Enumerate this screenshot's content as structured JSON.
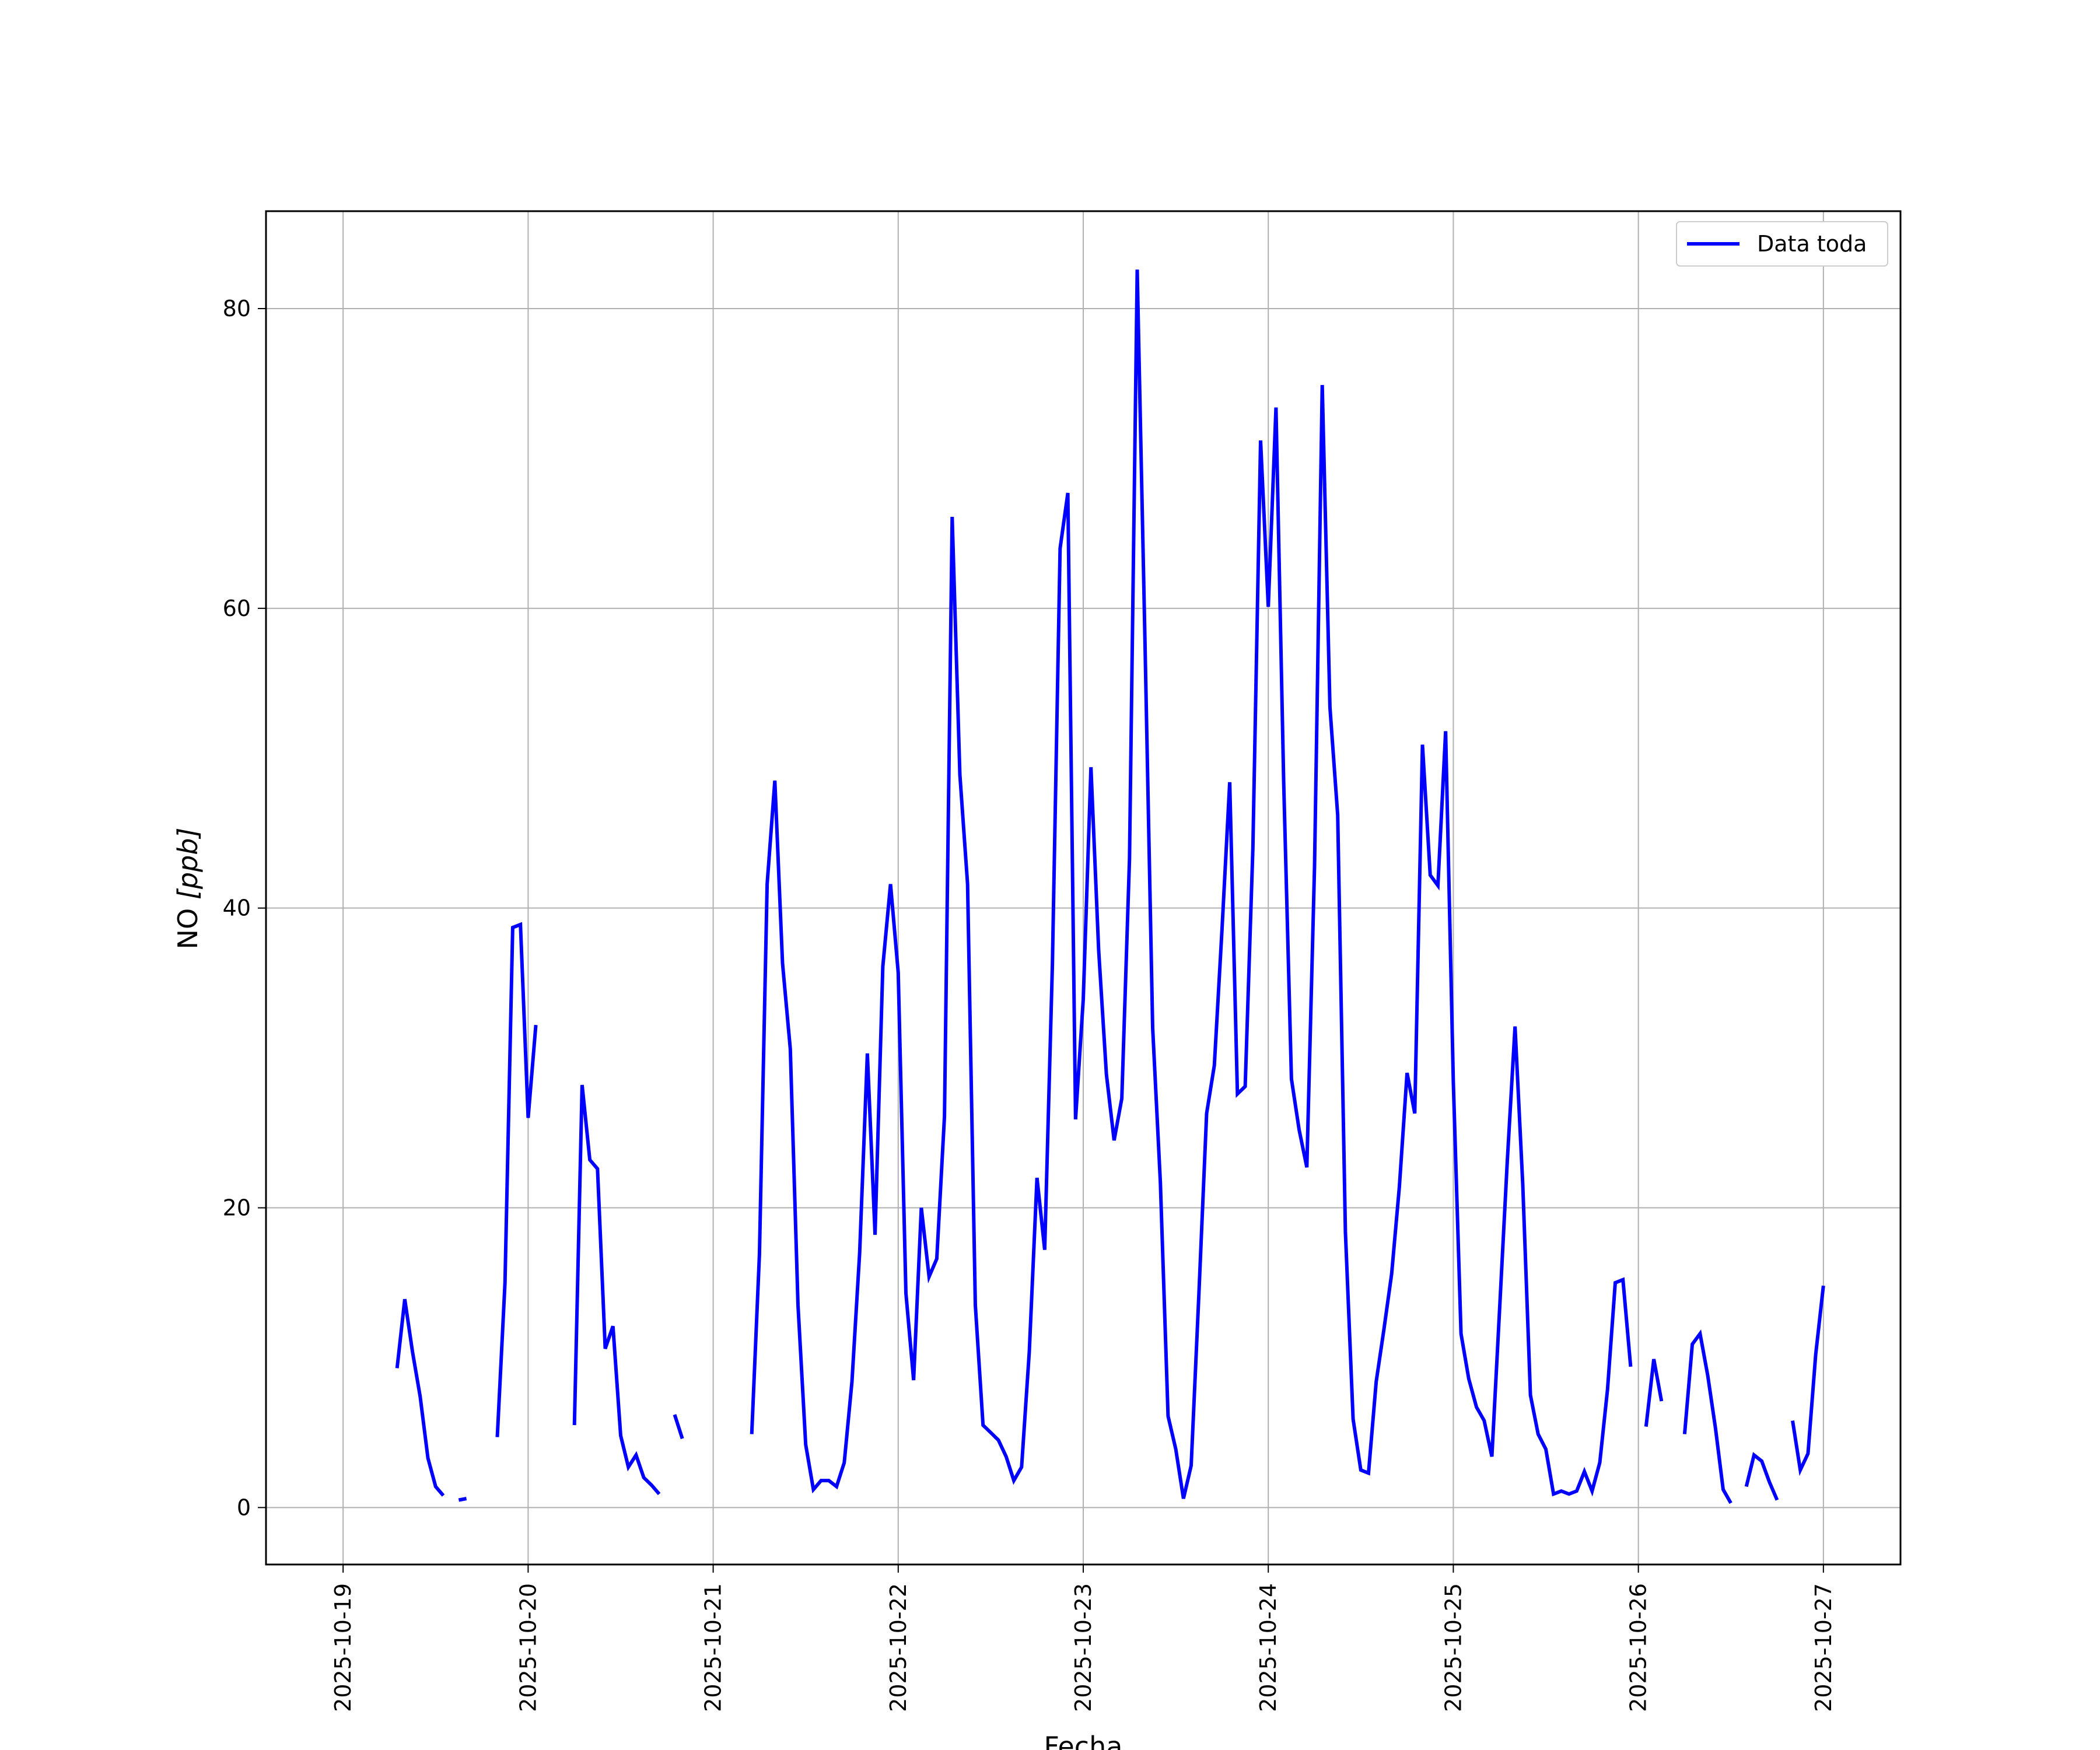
{
  "chart_data": {
    "type": "line",
    "title": "",
    "xlabel": "Fecha",
    "ylabel_main": "NO ",
    "ylabel_unit": "[ppb]",
    "ylim": [
      -3.8,
      86.5
    ],
    "xlim": [
      "2025-10-18 14:00",
      "2025-10-27 10:00"
    ],
    "yticks": [
      0,
      20,
      40,
      60,
      80
    ],
    "xticks": [
      "2025-10-19",
      "2025-10-20",
      "2025-10-21",
      "2025-10-22",
      "2025-10-23",
      "2025-10-24",
      "2025-10-25",
      "2025-10-26",
      "2025-10-27"
    ],
    "grid": true,
    "legend": {
      "position": "upper right"
    },
    "series": [
      {
        "name": "Data toda",
        "color": "#0000ff",
        "segments": [
          [
            [
              "2025-10-19 07:00",
              9.3
            ],
            [
              "2025-10-19 08:00",
              13.9
            ],
            [
              "2025-10-19 09:00",
              10.4
            ],
            [
              "2025-10-19 10:00",
              7.4
            ],
            [
              "2025-10-19 11:00",
              3.3
            ],
            [
              "2025-10-19 12:00",
              1.4
            ],
            [
              "2025-10-19 13:00",
              0.8
            ]
          ],
          [
            [
              "2025-10-19 15:00",
              0.5
            ],
            [
              "2025-10-19 16:00",
              0.6
            ]
          ],
          [
            [
              "2025-10-19 20:00",
              4.7
            ],
            [
              "2025-10-19 21:00",
              15.0
            ],
            [
              "2025-10-19 22:00",
              38.7
            ],
            [
              "2025-10-19 23:00",
              38.9
            ],
            [
              "2025-10-20 00:00",
              26.0
            ],
            [
              "2025-10-20 01:00",
              32.2
            ]
          ],
          [
            [
              "2025-10-20 06:00",
              5.5
            ],
            [
              "2025-10-20 07:00",
              28.2
            ],
            [
              "2025-10-20 08:00",
              23.2
            ],
            [
              "2025-10-20 09:00",
              22.6
            ],
            [
              "2025-10-20 10:00",
              10.6
            ],
            [
              "2025-10-20 11:00",
              12.1
            ],
            [
              "2025-10-20 12:00",
              4.8
            ],
            [
              "2025-10-20 13:00",
              2.7
            ],
            [
              "2025-10-20 14:00",
              3.5
            ],
            [
              "2025-10-20 15:00",
              2.0
            ],
            [
              "2025-10-20 16:00",
              1.5
            ],
            [
              "2025-10-20 17:00",
              0.9
            ]
          ],
          [
            [
              "2025-10-20 19:00",
              6.2
            ],
            [
              "2025-10-20 20:00",
              4.6
            ]
          ],
          [
            [
              "2025-10-21 05:00",
              4.9
            ],
            [
              "2025-10-21 06:00",
              16.9
            ],
            [
              "2025-10-21 07:00",
              41.6
            ],
            [
              "2025-10-21 08:00",
              48.5
            ],
            [
              "2025-10-21 09:00",
              36.3
            ],
            [
              "2025-10-21 10:00",
              30.6
            ],
            [
              "2025-10-21 11:00",
              13.5
            ],
            [
              "2025-10-21 12:00",
              4.2
            ],
            [
              "2025-10-21 13:00",
              1.2
            ],
            [
              "2025-10-21 14:00",
              1.8
            ],
            [
              "2025-10-21 15:00",
              1.8
            ],
            [
              "2025-10-21 16:00",
              1.4
            ],
            [
              "2025-10-21 17:00",
              3.0
            ],
            [
              "2025-10-21 18:00",
              8.4
            ],
            [
              "2025-10-21 19:00",
              17.0
            ],
            [
              "2025-10-21 20:00",
              30.3
            ],
            [
              "2025-10-21 21:00",
              18.2
            ],
            [
              "2025-10-21 22:00",
              36.1
            ],
            [
              "2025-10-21 23:00",
              41.6
            ],
            [
              "2025-10-22 00:00",
              35.7
            ],
            [
              "2025-10-22 01:00",
              14.3
            ],
            [
              "2025-10-22 02:00",
              8.5
            ],
            [
              "2025-10-22 03:00",
              20.0
            ],
            [
              "2025-10-22 04:00",
              15.4
            ],
            [
              "2025-10-22 05:00",
              16.6
            ],
            [
              "2025-10-22 06:00",
              26.1
            ],
            [
              "2025-10-22 07:00",
              66.1
            ],
            [
              "2025-10-22 08:00",
              48.9
            ],
            [
              "2025-10-22 09:00",
              41.6
            ],
            [
              "2025-10-22 10:00",
              13.5
            ],
            [
              "2025-10-22 11:00",
              5.5
            ],
            [
              "2025-10-22 12:00",
              5.0
            ],
            [
              "2025-10-22 13:00",
              4.5
            ],
            [
              "2025-10-22 14:00",
              3.4
            ],
            [
              "2025-10-22 15:00",
              1.8
            ],
            [
              "2025-10-22 16:00",
              2.7
            ],
            [
              "2025-10-22 17:00",
              10.4
            ],
            [
              "2025-10-22 18:00",
              22.0
            ],
            [
              "2025-10-22 19:00",
              17.2
            ],
            [
              "2025-10-22 20:00",
              36.2
            ],
            [
              "2025-10-22 21:00",
              64.0
            ],
            [
              "2025-10-22 22:00",
              67.7
            ],
            [
              "2025-10-22 23:00",
              25.9
            ],
            [
              "2025-10-23 00:00",
              33.9
            ],
            [
              "2025-10-23 01:00",
              49.4
            ],
            [
              "2025-10-23 02:00",
              37.2
            ],
            [
              "2025-10-23 03:00",
              28.9
            ],
            [
              "2025-10-23 04:00",
              24.5
            ],
            [
              "2025-10-23 05:00",
              27.3
            ],
            [
              "2025-10-23 06:00",
              43.3
            ],
            [
              "2025-10-23 07:00",
              82.6
            ],
            [
              "2025-10-23 08:00",
              58.0
            ],
            [
              "2025-10-23 09:00",
              32.0
            ],
            [
              "2025-10-23 10:00",
              21.7
            ],
            [
              "2025-10-23 11:00",
              6.1
            ],
            [
              "2025-10-23 12:00",
              3.9
            ],
            [
              "2025-10-23 13:00",
              0.6
            ],
            [
              "2025-10-23 14:00",
              2.8
            ],
            [
              "2025-10-23 15:00",
              14.3
            ],
            [
              "2025-10-23 16:00",
              26.3
            ],
            [
              "2025-10-23 17:00",
              29.5
            ],
            [
              "2025-10-23 18:00",
              38.6
            ],
            [
              "2025-10-23 19:00",
              48.4
            ],
            [
              "2025-10-23 20:00",
              27.6
            ],
            [
              "2025-10-23 21:00",
              28.1
            ],
            [
              "2025-10-23 22:00",
              44.0
            ],
            [
              "2025-10-23 23:00",
              71.2
            ],
            [
              "2025-10-24 00:00",
              60.1
            ],
            [
              "2025-10-24 01:00",
              73.4
            ],
            [
              "2025-10-24 02:00",
              48.4
            ],
            [
              "2025-10-24 03:00",
              28.6
            ],
            [
              "2025-10-24 04:00",
              25.2
            ],
            [
              "2025-10-24 05:00",
              22.7
            ],
            [
              "2025-10-24 06:00",
              42.8
            ],
            [
              "2025-10-24 07:00",
              74.9
            ],
            [
              "2025-10-24 08:00",
              53.4
            ],
            [
              "2025-10-24 09:00",
              46.2
            ],
            [
              "2025-10-24 10:00",
              18.4
            ],
            [
              "2025-10-24 11:00",
              5.9
            ],
            [
              "2025-10-24 12:00",
              2.5
            ],
            [
              "2025-10-24 13:00",
              2.3
            ],
            [
              "2025-10-24 14:00",
              8.4
            ],
            [
              "2025-10-24 15:00",
              11.9
            ],
            [
              "2025-10-24 16:00",
              15.6
            ],
            [
              "2025-10-24 17:00",
              21.4
            ],
            [
              "2025-10-24 18:00",
              29.0
            ],
            [
              "2025-10-24 19:00",
              26.3
            ],
            [
              "2025-10-24 20:00",
              50.9
            ],
            [
              "2025-10-24 21:00",
              42.2
            ],
            [
              "2025-10-24 22:00",
              41.5
            ],
            [
              "2025-10-24 23:00",
              51.8
            ],
            [
              "2025-10-25 00:00",
              28.4
            ],
            [
              "2025-10-25 01:00",
              11.6
            ],
            [
              "2025-10-25 02:00",
              8.6
            ],
            [
              "2025-10-25 03:00",
              6.7
            ],
            [
              "2025-10-25 04:00",
              5.8
            ],
            [
              "2025-10-25 05:00",
              3.4
            ],
            [
              "2025-10-25 06:00",
              13.2
            ],
            [
              "2025-10-25 07:00",
              23.1
            ],
            [
              "2025-10-25 08:00",
              32.1
            ],
            [
              "2025-10-25 09:00",
              21.6
            ],
            [
              "2025-10-25 10:00",
              7.5
            ],
            [
              "2025-10-25 11:00",
              4.9
            ],
            [
              "2025-10-25 12:00",
              3.9
            ],
            [
              "2025-10-25 13:00",
              0.9
            ],
            [
              "2025-10-25 14:00",
              1.1
            ],
            [
              "2025-10-25 15:00",
              0.9
            ],
            [
              "2025-10-25 16:00",
              1.1
            ],
            [
              "2025-10-25 17:00",
              2.4
            ],
            [
              "2025-10-25 18:00",
              1.1
            ],
            [
              "2025-10-25 19:00",
              3.0
            ],
            [
              "2025-10-25 20:00",
              7.9
            ],
            [
              "2025-10-25 21:00",
              15.0
            ],
            [
              "2025-10-25 22:00",
              15.2
            ],
            [
              "2025-10-25 23:00",
              9.4
            ]
          ],
          [
            [
              "2025-10-26 01:00",
              5.4
            ],
            [
              "2025-10-26 02:00",
              9.9
            ],
            [
              "2025-10-26 03:00",
              7.1
            ]
          ],
          [
            [
              "2025-10-26 06:00",
              4.9
            ],
            [
              "2025-10-26 07:00",
              10.9
            ],
            [
              "2025-10-26 08:00",
              11.6
            ],
            [
              "2025-10-26 09:00",
              8.8
            ],
            [
              "2025-10-26 10:00",
              5.3
            ],
            [
              "2025-10-26 11:00",
              1.2
            ],
            [
              "2025-10-26 12:00",
              0.3
            ]
          ],
          [
            [
              "2025-10-26 14:00",
              1.4
            ],
            [
              "2025-10-26 15:00",
              3.5
            ],
            [
              "2025-10-26 16:00",
              3.1
            ],
            [
              "2025-10-26 17:00",
              1.7
            ],
            [
              "2025-10-26 18:00",
              0.5
            ]
          ],
          [
            [
              "2025-10-26 20:00",
              5.8
            ],
            [
              "2025-10-26 21:00",
              2.5
            ],
            [
              "2025-10-26 22:00",
              3.6
            ],
            [
              "2025-10-26 23:00",
              10.2
            ],
            [
              "2025-10-27 00:00",
              14.8
            ]
          ]
        ]
      }
    ]
  }
}
